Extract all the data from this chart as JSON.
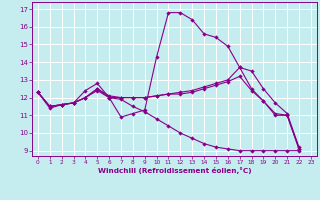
{
  "xlabel": "Windchill (Refroidissement éolien,°C)",
  "bg_color": "#c5edf0",
  "line_color": "#880088",
  "grid_color": "#ffffff",
  "xlim": [
    -0.5,
    23.5
  ],
  "ylim": [
    8.7,
    17.4
  ],
  "yticks": [
    9,
    10,
    11,
    12,
    13,
    14,
    15,
    16,
    17
  ],
  "xticks": [
    0,
    1,
    2,
    3,
    4,
    5,
    6,
    7,
    8,
    9,
    10,
    11,
    12,
    13,
    14,
    15,
    16,
    17,
    18,
    19,
    20,
    21,
    22,
    23
  ],
  "lines": [
    {
      "x": [
        0,
        1,
        2,
        3,
        4,
        5,
        6,
        7,
        8,
        9,
        10,
        11,
        12,
        13,
        14,
        15,
        16,
        17,
        18,
        19,
        20,
        21,
        22
      ],
      "y": [
        12.3,
        11.4,
        11.6,
        11.7,
        12.4,
        12.8,
        12.0,
        10.9,
        11.1,
        11.3,
        14.3,
        16.8,
        16.8,
        16.4,
        15.6,
        15.4,
        14.9,
        13.7,
        12.5,
        11.8,
        11.0,
        11.0,
        9.1
      ]
    },
    {
      "x": [
        0,
        1,
        2,
        3,
        4,
        5,
        6,
        7,
        8,
        9,
        10,
        11,
        12,
        13,
        14,
        15,
        16,
        17,
        18,
        19,
        20,
        21,
        22
      ],
      "y": [
        12.3,
        11.5,
        11.6,
        11.7,
        12.0,
        12.5,
        12.1,
        12.0,
        12.0,
        12.0,
        12.1,
        12.2,
        12.3,
        12.4,
        12.6,
        12.8,
        13.0,
        13.7,
        13.5,
        12.5,
        11.7,
        11.1,
        9.2
      ]
    },
    {
      "x": [
        0,
        1,
        2,
        3,
        4,
        5,
        6,
        7,
        8,
        9,
        10,
        11,
        12,
        13,
        14,
        15,
        16,
        17,
        18,
        19,
        20,
        21,
        22
      ],
      "y": [
        12.3,
        11.5,
        11.6,
        11.7,
        12.0,
        12.5,
        12.0,
        12.0,
        12.0,
        12.0,
        12.1,
        12.2,
        12.2,
        12.3,
        12.5,
        12.7,
        12.9,
        13.2,
        12.4,
        11.8,
        11.1,
        11.0,
        9.1
      ]
    },
    {
      "x": [
        0,
        1,
        2,
        3,
        4,
        5,
        6,
        7,
        8,
        9,
        10,
        11,
        12,
        13,
        14,
        15,
        16,
        17,
        18,
        19,
        20,
        21,
        22
      ],
      "y": [
        12.3,
        11.5,
        11.6,
        11.7,
        12.0,
        12.4,
        12.0,
        11.9,
        11.5,
        11.2,
        10.8,
        10.4,
        10.0,
        9.7,
        9.4,
        9.2,
        9.1,
        9.0,
        9.0,
        9.0,
        9.0,
        9.0,
        9.0
      ]
    }
  ]
}
